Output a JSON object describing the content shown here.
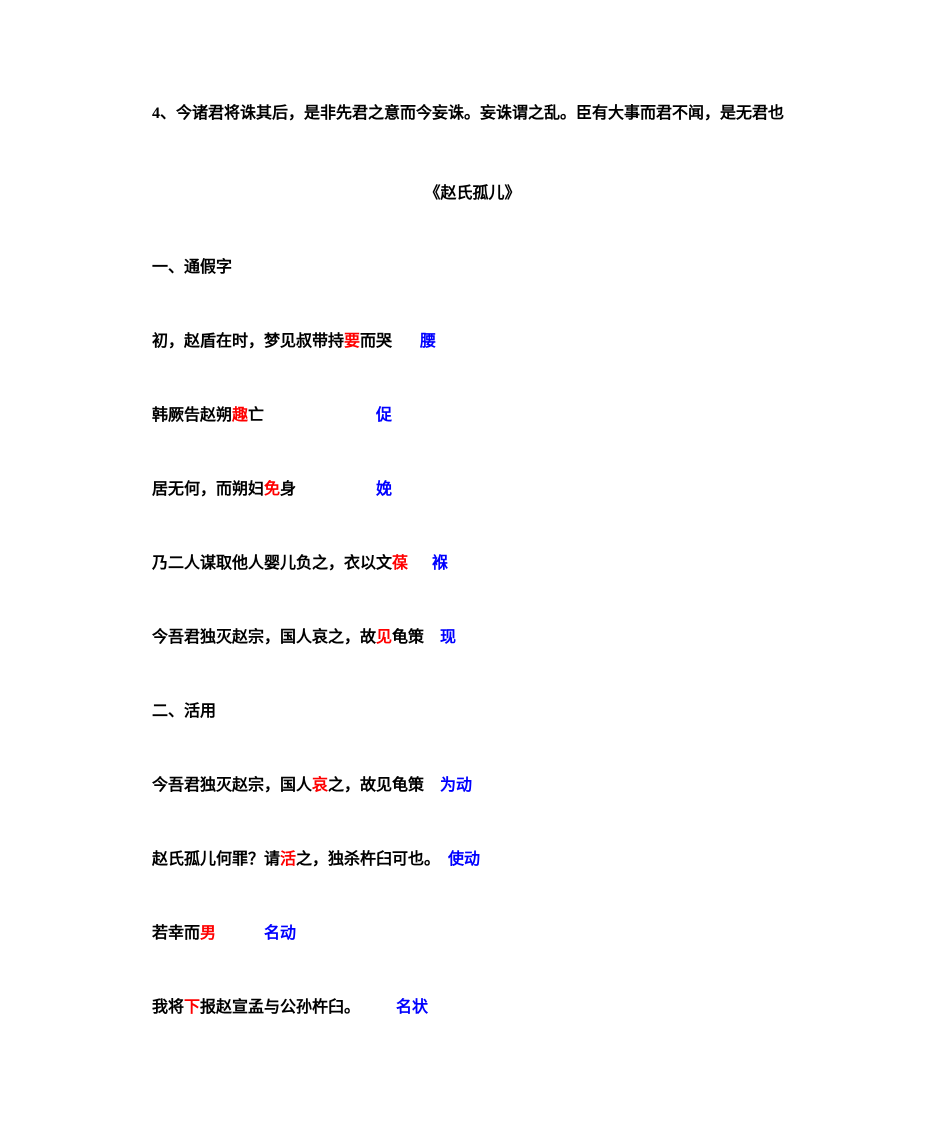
{
  "colors": {
    "black": "#000000",
    "red": "#ff0000",
    "blue": "#0000ff",
    "background": "#ffffff"
  },
  "typography": {
    "font_family": "SimSun",
    "font_size": 16,
    "font_weight": "bold",
    "line_height": 1.8
  },
  "intro": {
    "text": "4、今诸君将诛其后，是非先君之意而今妄诛。妄诛谓之乱。臣有大事而君不闻，是无君也"
  },
  "title": "《赵氏孤儿》",
  "section1": {
    "heading": "一、通假字",
    "entries": [
      {
        "pre": "初，赵盾在时，梦见叔带持",
        "red_char": "要",
        "post": "而哭",
        "gap": "       ",
        "blue": "腰"
      },
      {
        "pre": "韩厥告赵朔",
        "red_char": "趣",
        "post": "亡",
        "gap": "                            ",
        "blue": "促"
      },
      {
        "pre": "居无何，而朔妇",
        "red_char": "免",
        "post": "身",
        "gap": "                    ",
        "blue": "娩"
      },
      {
        "pre": "乃二人谋取他人婴儿负之，衣以文",
        "red_char": "葆",
        "post": "",
        "gap": "      ",
        "blue": "褓"
      },
      {
        "pre": "今吾君独灭赵宗，国人哀之，故",
        "red_char": "见",
        "post": "龟策",
        "gap": "    ",
        "blue": "现"
      }
    ]
  },
  "section2": {
    "heading": "二、活用",
    "entries": [
      {
        "pre": "今吾君独灭赵宗，国人",
        "red_char": "哀",
        "post": "之，故见龟策",
        "gap": "    ",
        "blue": "为动"
      },
      {
        "pre": "赵氏孤儿何罪？请",
        "red_char": "活",
        "post": "之，独杀杵臼可也。",
        "gap": "  ",
        "blue": "使动"
      },
      {
        "pre": "若幸而",
        "red_char": "男",
        "post": "",
        "gap": "            ",
        "blue": "名动"
      },
      {
        "pre": "我将",
        "red_char": "下",
        "post": "报赵宣孟与公孙杵臼。",
        "gap": "         ",
        "blue": "名状"
      }
    ]
  }
}
